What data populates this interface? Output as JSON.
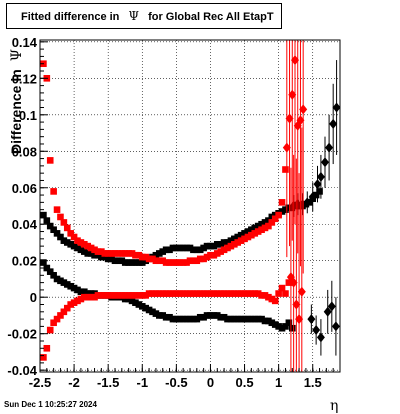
{
  "title": {
    "prefix": "Fitted difference in",
    "symbol": "Ψ",
    "suffix": "for Global Rec All EtapT"
  },
  "ylabel": {
    "text": "Difference in",
    "symbol": "Ψ"
  },
  "xlabel": "η",
  "timestamp": "Sun Dec  1 10:25:27 2024",
  "chart_data": {
    "type": "scatter",
    "xlim": [
      -2.5,
      1.9
    ],
    "ylim": [
      -0.041,
      0.141
    ],
    "x_ticks": [
      "-2.5",
      "-2",
      "-1.5",
      "-1",
      "-0.5",
      "0",
      "0.5",
      "1",
      "1.5"
    ],
    "x_tick_values": [
      -2.5,
      -2,
      -1.5,
      -1,
      -0.5,
      0,
      0.5,
      1,
      1.5
    ],
    "y_ticks": [
      "-0.04",
      "-0.02",
      "0",
      "0.02",
      "0.04",
      "0.06",
      "0.08",
      "0.1",
      "0.12",
      "0.14"
    ],
    "y_tick_values": [
      -0.04,
      -0.02,
      0,
      0.02,
      0.04,
      0.06,
      0.08,
      0.1,
      0.12,
      0.14
    ],
    "grid": true,
    "series": [
      {
        "color": "#000000",
        "marker": "square",
        "x": [
          -2.45,
          -2.4,
          -2.35,
          -2.3,
          -2.25,
          -2.2,
          -2.15,
          -2.1,
          -2.05,
          -2.0,
          -1.95,
          -1.9,
          -1.85,
          -1.8,
          -1.75,
          -1.7,
          -1.65,
          -1.6,
          -1.55,
          -1.5,
          -1.45,
          -1.4,
          -1.35,
          -1.3,
          -1.25,
          -1.2,
          -1.15,
          -1.1,
          -1.05,
          -1.0,
          -0.95,
          -0.9,
          -0.85,
          -0.8,
          -0.75,
          -0.7,
          -0.65,
          -0.6,
          -0.55,
          -0.5,
          -0.45,
          -0.4,
          -0.35,
          -0.3,
          -0.25,
          -0.2,
          -0.15,
          -0.1,
          -0.05,
          0.0,
          0.05,
          0.1,
          0.15,
          0.2,
          0.25,
          0.3,
          0.35,
          0.4,
          0.45,
          0.5,
          0.55,
          0.6,
          0.65,
          0.7,
          0.75,
          0.8,
          0.85,
          0.9,
          0.95,
          1.0,
          1.05,
          1.1,
          1.15,
          1.2,
          1.25,
          1.3,
          1.35,
          1.4,
          1.45,
          1.5,
          1.55,
          1.6
        ],
        "y": [
          0.045,
          0.042,
          0.039,
          0.037,
          0.035,
          0.033,
          0.031,
          0.03,
          0.029,
          0.028,
          0.027,
          0.026,
          0.025,
          0.024,
          0.024,
          0.023,
          0.023,
          0.022,
          0.022,
          0.021,
          0.021,
          0.02,
          0.02,
          0.02,
          0.019,
          0.019,
          0.019,
          0.019,
          0.019,
          0.019,
          0.02,
          0.021,
          0.022,
          0.023,
          0.024,
          0.025,
          0.026,
          0.026,
          0.027,
          0.027,
          0.027,
          0.027,
          0.027,
          0.027,
          0.026,
          0.026,
          0.026,
          0.027,
          0.028,
          0.028,
          0.028,
          0.029,
          0.029,
          0.03,
          0.03,
          0.031,
          0.032,
          0.033,
          0.034,
          0.035,
          0.036,
          0.037,
          0.038,
          0.039,
          0.04,
          0.041,
          0.042,
          0.044,
          0.045,
          0.046,
          0.047,
          0.048,
          0.049,
          0.049,
          0.05,
          0.05,
          0.05,
          0.051,
          0.052,
          0.054,
          0.056,
          0.058
        ]
      },
      {
        "color": "#000000",
        "marker": "square",
        "x": [
          -2.45,
          -2.4,
          -2.35,
          -2.3,
          -2.25,
          -2.2,
          -2.15,
          -2.1,
          -2.05,
          -2.0,
          -1.95,
          -1.9,
          -1.85,
          -1.8,
          -1.75,
          -1.7,
          -1.65,
          -1.6,
          -1.55,
          -1.5,
          -1.45,
          -1.4,
          -1.35,
          -1.3,
          -1.25,
          -1.2,
          -1.15,
          -1.1,
          -1.05,
          -1.0,
          -0.95,
          -0.9,
          -0.85,
          -0.8,
          -0.75,
          -0.7,
          -0.65,
          -0.6,
          -0.55,
          -0.5,
          -0.45,
          -0.4,
          -0.35,
          -0.3,
          -0.25,
          -0.2,
          -0.15,
          -0.1,
          -0.05,
          0.0,
          0.05,
          0.1,
          0.15,
          0.2,
          0.25,
          0.3,
          0.35,
          0.4,
          0.45,
          0.5,
          0.55,
          0.6,
          0.65,
          0.7,
          0.75,
          0.8,
          0.85,
          0.9,
          0.95,
          1.0,
          1.05,
          1.1,
          1.15,
          1.2
        ],
        "y": [
          0.019,
          0.016,
          0.014,
          0.012,
          0.01,
          0.009,
          0.008,
          0.007,
          0.006,
          0.005,
          0.004,
          0.003,
          0.003,
          0.002,
          0.002,
          0.002,
          0.001,
          0.001,
          0.001,
          0.001,
          0.0,
          0.0,
          0.0,
          0.0,
          -0.001,
          -0.001,
          -0.002,
          -0.003,
          -0.004,
          -0.005,
          -0.006,
          -0.007,
          -0.008,
          -0.009,
          -0.01,
          -0.01,
          -0.011,
          -0.011,
          -0.012,
          -0.012,
          -0.012,
          -0.012,
          -0.012,
          -0.012,
          -0.012,
          -0.012,
          -0.011,
          -0.011,
          -0.01,
          -0.01,
          -0.01,
          -0.01,
          -0.011,
          -0.011,
          -0.012,
          -0.012,
          -0.012,
          -0.012,
          -0.012,
          -0.012,
          -0.012,
          -0.012,
          -0.012,
          -0.012,
          -0.012,
          -0.013,
          -0.013,
          -0.014,
          -0.015,
          -0.016,
          -0.017,
          -0.016,
          -0.014,
          -0.017
        ]
      },
      {
        "color": "#ff0000",
        "marker": "square",
        "x": [
          -2.45,
          -2.4,
          -2.35,
          -2.3,
          -2.25,
          -2.2,
          -2.15,
          -2.1,
          -2.05,
          -2.0,
          -1.95,
          -1.9,
          -1.85,
          -1.8,
          -1.75,
          -1.7,
          -1.65,
          -1.6,
          -1.55,
          -1.5,
          -1.45,
          -1.4,
          -1.35,
          -1.3,
          -1.25,
          -1.2,
          -1.15,
          -1.1,
          -1.05,
          -1.0,
          -0.95,
          -0.9,
          -0.85,
          -0.8,
          -0.75,
          -0.7,
          -0.65,
          -0.6,
          -0.55,
          -0.5,
          -0.45,
          -0.4,
          -0.35,
          -0.3,
          -0.25,
          -0.2,
          -0.15,
          -0.1,
          -0.05,
          0.0,
          0.05,
          0.1,
          0.15,
          0.2,
          0.25,
          0.3,
          0.35,
          0.4,
          0.45,
          0.5,
          0.55,
          0.6,
          0.65,
          0.7,
          0.75,
          0.8,
          0.85,
          0.9,
          0.95,
          1.0,
          1.05,
          1.1
        ],
        "y": [
          0.128,
          0.12,
          0.075,
          0.058,
          0.048,
          0.044,
          0.041,
          0.038,
          0.035,
          0.033,
          0.031,
          0.03,
          0.029,
          0.028,
          0.027,
          0.026,
          0.025,
          0.025,
          0.024,
          0.024,
          0.024,
          0.024,
          0.024,
          0.024,
          0.024,
          0.024,
          0.024,
          0.023,
          0.023,
          0.022,
          0.022,
          0.021,
          0.021,
          0.02,
          0.02,
          0.02,
          0.019,
          0.019,
          0.019,
          0.019,
          0.019,
          0.019,
          0.019,
          0.02,
          0.02,
          0.02,
          0.021,
          0.021,
          0.022,
          0.023,
          0.023,
          0.024,
          0.025,
          0.026,
          0.027,
          0.028,
          0.029,
          0.03,
          0.031,
          0.032,
          0.033,
          0.034,
          0.035,
          0.036,
          0.037,
          0.038,
          0.039,
          0.041,
          0.043,
          0.045,
          0.052,
          0.07
        ]
      },
      {
        "color": "#ff0000",
        "marker": "square",
        "x": [
          -2.45,
          -2.4,
          -2.35,
          -2.3,
          -2.25,
          -2.2,
          -2.15,
          -2.1,
          -2.05,
          -2.0,
          -1.95,
          -1.9,
          -1.85,
          -1.8,
          -1.75,
          -1.7,
          -1.65,
          -1.6,
          -1.55,
          -1.5,
          -1.45,
          -1.4,
          -1.35,
          -1.3,
          -1.25,
          -1.2,
          -1.15,
          -1.1,
          -1.05,
          -1.0,
          -0.95,
          -0.9,
          -0.85,
          -0.8,
          -0.75,
          -0.7,
          -0.65,
          -0.6,
          -0.55,
          -0.5,
          -0.45,
          -0.4,
          -0.35,
          -0.3,
          -0.25,
          -0.2,
          -0.15,
          -0.1,
          -0.05,
          0.0,
          0.05,
          0.1,
          0.15,
          0.2,
          0.25,
          0.3,
          0.35,
          0.4,
          0.45,
          0.5,
          0.55,
          0.6,
          0.65,
          0.7,
          0.75,
          0.8,
          0.85,
          0.9,
          0.95,
          1.0,
          1.05,
          1.1,
          1.15
        ],
        "y": [
          -0.033,
          -0.028,
          -0.018,
          -0.014,
          -0.012,
          -0.01,
          -0.008,
          -0.006,
          -0.004,
          -0.003,
          -0.002,
          -0.001,
          0.0,
          0.0,
          0.0,
          0.0,
          0.001,
          0.001,
          0.001,
          0.001,
          0.001,
          0.001,
          0.001,
          0.001,
          0.001,
          0.001,
          0.001,
          0.001,
          0.001,
          0.001,
          0.001,
          0.002,
          0.002,
          0.002,
          0.002,
          0.002,
          0.002,
          0.002,
          0.002,
          0.002,
          0.002,
          0.002,
          0.002,
          0.002,
          0.002,
          0.002,
          0.002,
          0.002,
          0.002,
          0.002,
          0.002,
          0.002,
          0.002,
          0.002,
          0.002,
          0.002,
          0.002,
          0.002,
          0.002,
          0.002,
          0.002,
          0.002,
          0.002,
          0.002,
          0.001,
          0.001,
          0.0,
          -0.001,
          -0.002,
          0.002,
          0.005,
          0.002,
          0.008
        ]
      },
      {
        "color": "#000000",
        "marker": "diamond",
        "errors": true,
        "x": [
          1.22,
          1.28,
          1.35,
          1.42,
          1.5,
          1.57,
          1.62,
          1.68,
          1.74,
          1.8,
          1.85,
          1.48,
          1.55,
          1.62,
          1.72,
          1.78,
          1.84
        ],
        "y": [
          0.05,
          0.051,
          0.051,
          0.052,
          0.055,
          0.062,
          0.066,
          0.074,
          0.082,
          0.095,
          0.104,
          -0.012,
          -0.018,
          -0.022,
          -0.008,
          -0.005,
          -0.016
        ],
        "err": [
          0.006,
          0.006,
          0.006,
          0.006,
          0.008,
          0.01,
          0.012,
          0.014,
          0.018,
          0.022,
          0.026,
          0.008,
          0.008,
          0.01,
          0.012,
          0.014,
          0.016
        ]
      },
      {
        "color": "#ff0000",
        "marker": "diamond",
        "errors": true,
        "x": [
          1.12,
          1.16,
          1.2,
          1.24,
          1.28,
          1.32,
          1.36,
          1.18,
          1.22,
          1.26,
          1.3,
          1.34
        ],
        "y": [
          0.082,
          0.098,
          0.111,
          0.13,
          0.094,
          0.097,
          0.103,
          0.011,
          0.008,
          -0.004,
          -0.012,
          0.003
        ],
        "err": [
          0.06,
          0.07,
          0.08,
          0.09,
          0.07,
          0.08,
          0.09,
          0.06,
          0.07,
          0.08,
          0.08,
          0.09
        ]
      }
    ]
  }
}
